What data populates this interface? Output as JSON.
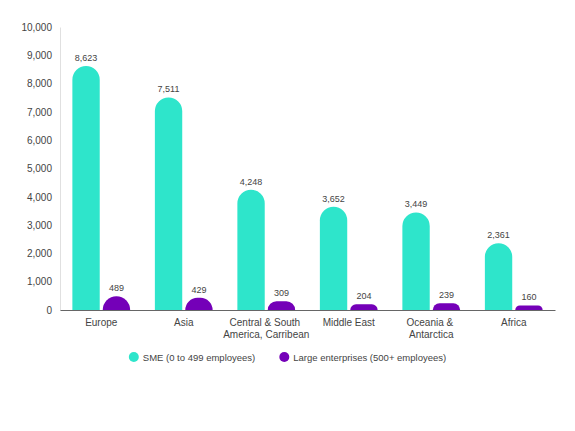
{
  "chart_data": {
    "type": "bar",
    "categories": [
      "Europe",
      "Asia",
      "Central & South America, Carribean",
      "Middle East",
      "Oceania & Antarctica",
      "Africa"
    ],
    "series": [
      {
        "name": "SME (0 to 499 employees)",
        "color": "#2ee5cb",
        "values": [
          8623,
          7511,
          4248,
          3652,
          3449,
          2361
        ],
        "value_labels": [
          "8,623",
          "7,511",
          "4,248",
          "3,652",
          "3,449",
          "2,361"
        ]
      },
      {
        "name": "Large enterprises (500+ employees)",
        "color": "#7400b8",
        "values": [
          489,
          429,
          309,
          204,
          239,
          160
        ]
      }
    ],
    "ylim": [
      0,
      10000
    ],
    "yticks": [
      0,
      {
        "value": 1000,
        "label": "1,000"
      },
      {
        "value": 2000,
        "label": "2,000"
      },
      {
        "value": 3000,
        "label": "3,000"
      },
      {
        "value": 4000,
        "label": "4,000"
      },
      {
        "value": 5000,
        "label": "5,000"
      },
      {
        "value": 6000,
        "label": "6,000"
      },
      {
        "value": 7000,
        "label": "7,000"
      },
      {
        "value": 8000,
        "label": "8,000"
      },
      {
        "value": 9000,
        "label": "9,000"
      },
      {
        "value": 10000,
        "label": "10,000"
      }
    ],
    "grid": false,
    "legend": "bottom",
    "data_labels": true
  }
}
